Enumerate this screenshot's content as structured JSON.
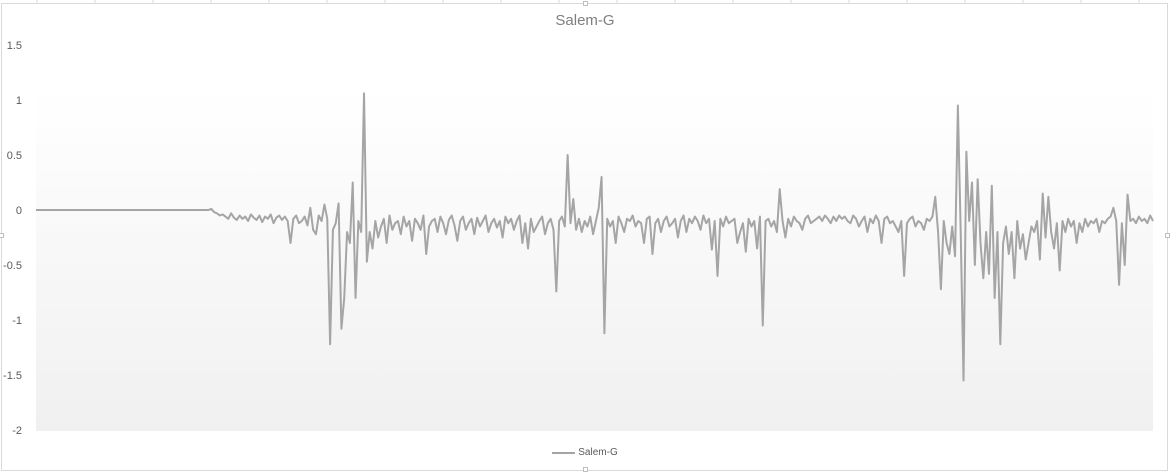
{
  "chart_data": {
    "type": "line",
    "title": "Salem-G",
    "xlabel": "",
    "ylabel": "",
    "ylim": [
      -2,
      1.5
    ],
    "y_ticks": [
      "1.5",
      "1",
      "0.5",
      "0",
      "-0.5",
      "-1",
      "-1.5",
      "-2"
    ],
    "x_tick_labels_shown": false,
    "grid": false,
    "legend_position": "bottom",
    "series": [
      {
        "name": "Salem-G",
        "color": "#a5a5a5",
        "values": [
          0,
          0,
          0,
          0,
          0,
          0,
          0,
          0,
          0,
          0,
          0,
          0,
          0,
          0,
          0,
          0,
          0,
          0,
          0,
          0,
          0,
          0,
          0,
          0,
          0,
          0,
          0,
          0,
          0,
          0,
          0,
          0,
          0,
          0,
          0,
          0,
          0,
          0,
          0,
          0,
          0,
          0,
          0,
          0,
          0,
          0,
          0,
          0,
          0,
          0,
          0,
          0,
          0,
          0,
          0,
          0,
          0,
          0,
          0,
          0,
          0,
          0,
          0.01,
          -0.02,
          -0.03,
          -0.05,
          -0.04,
          -0.06,
          -0.08,
          -0.03,
          -0.07,
          -0.09,
          -0.05,
          -0.08,
          -0.06,
          -0.1,
          -0.04,
          -0.07,
          -0.09,
          -0.05,
          -0.11,
          -0.06,
          -0.08,
          -0.04,
          -0.12,
          -0.07,
          -0.05,
          -0.09,
          -0.06,
          -0.1,
          -0.3,
          -0.08,
          -0.05,
          -0.12,
          -0.1,
          -0.06,
          -0.14,
          0.02,
          -0.18,
          -0.22,
          -0.05,
          -0.1,
          0.05,
          -0.08,
          -1.22,
          -0.18,
          -0.12,
          0.06,
          -1.08,
          -0.8,
          -0.2,
          -0.3,
          0.25,
          -0.8,
          -0.1,
          -0.2,
          1.06,
          -0.47,
          -0.2,
          -0.35,
          -0.1,
          -0.25,
          -0.15,
          -0.08,
          -0.3,
          -0.05,
          -0.18,
          -0.12,
          -0.1,
          -0.22,
          -0.06,
          -0.15,
          -0.1,
          -0.28,
          -0.08,
          -0.12,
          -0.18,
          -0.05,
          -0.4,
          -0.15,
          -0.1,
          -0.08,
          -0.2,
          -0.06,
          -0.12,
          -0.22,
          -0.09,
          -0.05,
          -0.14,
          -0.28,
          -0.1,
          -0.06,
          -0.18,
          -0.12,
          -0.08,
          -0.22,
          -0.07,
          -0.15,
          -0.1,
          -0.05,
          -0.2,
          -0.12,
          -0.08,
          -0.16,
          -0.1,
          -0.25,
          -0.06,
          -0.12,
          -0.08,
          -0.18,
          -0.1,
          -0.05,
          -0.3,
          -0.12,
          -0.35,
          -0.08,
          -0.2,
          -0.15,
          -0.1,
          -0.06,
          -0.22,
          -0.12,
          -0.08,
          -0.18,
          -0.74,
          -0.1,
          -0.06,
          -0.15,
          0.5,
          -0.12,
          0.1,
          -0.18,
          -0.08,
          -0.2,
          -0.1,
          -0.15,
          -0.06,
          -0.22,
          -0.1,
          0.02,
          0.3,
          -1.12,
          -0.08,
          -0.15,
          -0.1,
          -0.3,
          -0.06,
          -0.12,
          -0.2,
          -0.08,
          -0.1,
          -0.05,
          -0.15,
          -0.1,
          -0.12,
          -0.3,
          -0.08,
          -0.06,
          -0.4,
          -0.12,
          -0.08,
          -0.2,
          -0.1,
          -0.06,
          -0.15,
          -0.12,
          -0.08,
          -0.25,
          -0.1,
          -0.05,
          -0.2,
          -0.08,
          -0.12,
          -0.06,
          -0.1,
          -0.18,
          -0.05,
          -0.12,
          -0.08,
          -0.36,
          -0.1,
          -0.6,
          -0.08,
          -0.15,
          -0.06,
          -0.12,
          -0.1,
          -0.08,
          -0.3,
          -0.2,
          -0.12,
          -0.38,
          -0.08,
          -0.15,
          -0.1,
          -0.35,
          -0.06,
          -1.05,
          -0.1,
          -0.08,
          -0.15,
          -0.1,
          -0.2,
          0.19,
          -0.1,
          -0.25,
          -0.08,
          -0.15,
          -0.06,
          -0.1,
          -0.12,
          -0.18,
          -0.08,
          -0.05,
          -0.12,
          -0.1,
          -0.08,
          -0.06,
          -0.1,
          -0.05,
          -0.08,
          -0.12,
          -0.06,
          -0.1,
          -0.05,
          -0.08,
          -0.06,
          -0.1,
          -0.12,
          -0.05,
          -0.08,
          -0.15,
          -0.1,
          -0.06,
          -0.2,
          -0.08,
          -0.12,
          -0.05,
          -0.1,
          -0.3,
          -0.08,
          -0.06,
          -0.12,
          -0.1,
          -0.15,
          -0.2,
          -0.1,
          -0.6,
          -0.12,
          -0.08,
          -0.06,
          -0.15,
          -0.1,
          -0.12,
          -0.18,
          -0.08,
          -0.1,
          -0.06,
          0.12,
          -0.2,
          -0.72,
          -0.1,
          -0.3,
          -0.4,
          -0.15,
          -0.42,
          0.95,
          -0.2,
          -1.55,
          0.53,
          -0.1,
          0.25,
          -0.5,
          0.28,
          -0.3,
          -0.62,
          -0.2,
          -0.58,
          0.22,
          -0.8,
          -0.2,
          -1.22,
          -0.3,
          -0.15,
          -0.4,
          -0.2,
          -0.62,
          -0.1,
          -0.35,
          -0.22,
          -0.45,
          -0.3,
          -0.15,
          -0.2,
          -0.1,
          -0.45,
          0.15,
          -0.25,
          0.12,
          -0.2,
          -0.35,
          -0.12,
          -0.55,
          -0.1,
          -0.2,
          -0.08,
          -0.15,
          -0.1,
          -0.3,
          -0.12,
          -0.2,
          -0.08,
          -0.15,
          -0.1,
          -0.12,
          -0.08,
          -0.2,
          -0.1,
          -0.12,
          -0.08,
          -0.06,
          0.02,
          -0.1,
          -0.68,
          -0.12,
          -0.5,
          0.14,
          -0.1,
          -0.08,
          -0.12,
          -0.06,
          -0.1,
          -0.08,
          -0.12,
          -0.05,
          -0.1
        ]
      }
    ]
  }
}
